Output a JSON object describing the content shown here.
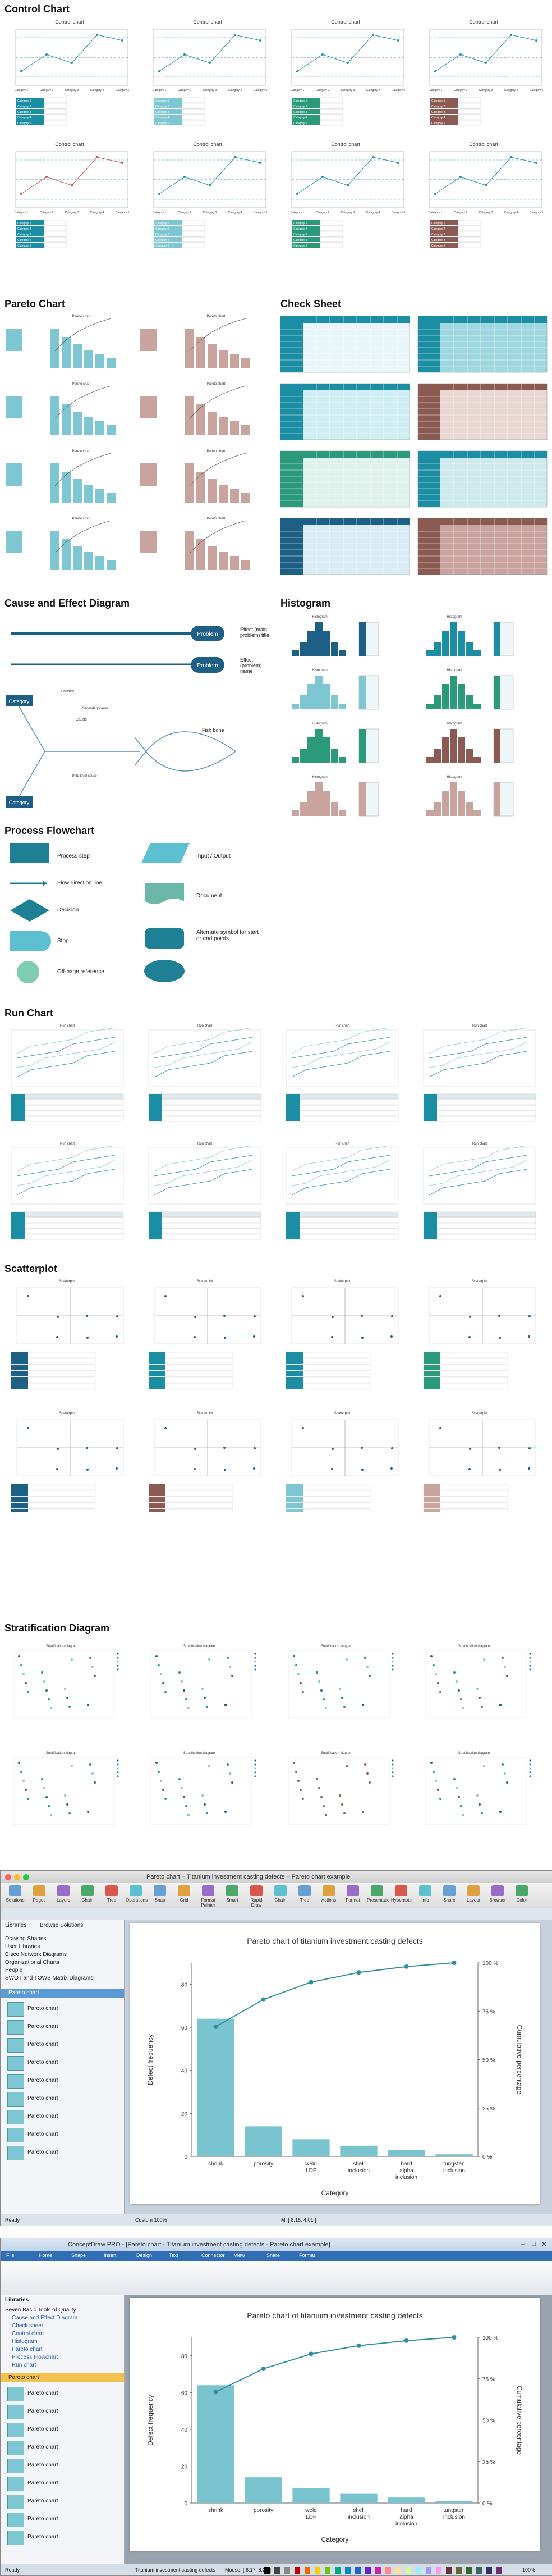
{
  "sections": {
    "control_chart": "Control Chart",
    "pareto_chart": "Pareto Chart",
    "check_sheet": "Check Sheet",
    "cause_effect": "Cause and Effect Diagram",
    "histogram": "Histogram",
    "process_flowchart": "Process Flowchart",
    "run_chart": "Run Chart",
    "scatterplot": "Scatterplot",
    "stratification": "Stratification Diagram"
  },
  "mini": {
    "control_chart_title": "Control chart",
    "pareto_title": "Pareto chart",
    "histogram_title": "Histogram",
    "run_title": "Run chart",
    "scatter_title": "Scatterplot",
    "strat_title": "Stratification diagram",
    "categories": [
      "Category 1",
      "Category 2",
      "Category 3",
      "Category 4",
      "Category 5"
    ]
  },
  "cause_effect": {
    "problem_label": "Problem",
    "problem_desc_1": "Effect (main problem) title",
    "problem_desc_2": "Effect (problem) name",
    "category": "Category",
    "causes": "Causes",
    "cause": "Cause",
    "secondary": "Secondary cause",
    "third": "Third level cause",
    "fish_label": "Fish bone"
  },
  "flowchart": {
    "process_step": "Process step",
    "flow_direction": "Flow direction line",
    "decision": "Decision",
    "stop": "Stop",
    "off_page": "Off-page reference",
    "input_output": "Input / Output",
    "document": "Document",
    "alternate": "Alternate symbol for start or end points"
  },
  "app1": {
    "window_title": "Pareto chart – Titanium investment casting defects – Pareto chart example",
    "toolbar": [
      "Solutions",
      "Pages",
      "Layers",
      "Chain",
      "Tree",
      "Operations",
      "Snap",
      "Grid",
      "Format Painter",
      "Smart",
      "Rapid Draw",
      "Chain",
      "Tree",
      "Actions",
      "Format",
      "Presentation",
      "Hypernote",
      "Info",
      "Share",
      "Layout",
      "Browser",
      "Color"
    ],
    "sidebar": {
      "items": [
        "Libraries",
        "Browse Solutions",
        "Drawing Shapes",
        "User Libraries",
        "Cisco Network Diagrams",
        "Organizational Charts",
        "People",
        "SWOT and TOWS Matrix Diagrams"
      ],
      "library_header": "Pareto chart",
      "thumbs": [
        "Pareto chart",
        "Pareto chart",
        "Pareto chart",
        "Pareto chart",
        "Pareto chart",
        "Pareto chart",
        "Pareto chart",
        "Pareto chart",
        "Pareto chart"
      ]
    },
    "status": {
      "left": "Ready",
      "zoom": "Custom 100%",
      "coords": "M: [ 8.16, 4.01 ]"
    }
  },
  "app2": {
    "window_title": "ConceptDraw PRO - [Pareto chart - Titanium investment casting defects - Pareto chart example]",
    "tabs": [
      "File",
      "Home",
      "Shape",
      "Insert",
      "Design",
      "Text",
      "Connector",
      "View",
      "Share",
      "Format"
    ],
    "sidebar": {
      "header": "Libraries",
      "tree": [
        "Seven Basic Tools of Quality",
        "Cause and Effect Diagram",
        "Check sheet",
        "Control chart",
        "Histogram",
        "Pareto chart",
        "Process Flowchart",
        "Run chart"
      ],
      "library_header": "Pareto chart",
      "thumbs": [
        "Pareto chart",
        "Pareto chart",
        "Pareto chart",
        "Pareto chart",
        "Pareto chart",
        "Pareto chart",
        "Pareto chart",
        "Pareto chart",
        "Pareto chart"
      ]
    },
    "status": {
      "left": "Ready",
      "page": "Titanium investment casting defects",
      "mouse": "Mouse: [ 6.17, 8.26 ] in",
      "zoom": "100%"
    }
  },
  "pareto_chart": {
    "title": "Pareto chart of titanium investment casting defects",
    "ylabel_left": "Defect frequency",
    "ylabel_right": "Cumulative percentage",
    "xlabel": "Category",
    "left_ticks": [
      "0",
      "20",
      "40",
      "60",
      "80"
    ],
    "right_ticks": [
      "0 %",
      "25 %",
      "50 %",
      "75 %",
      "100 %"
    ]
  },
  "chart_data": {
    "type": "bar",
    "title": "Pareto chart of titanium investment casting defects",
    "categories": [
      "shrink",
      "porosity",
      "weld LDF",
      "shell inclusion",
      "hard alpha inclusion",
      "tungsten inclusion"
    ],
    "series": [
      {
        "name": "Defect frequency",
        "values": [
          64,
          14,
          8,
          5,
          3,
          1
        ]
      },
      {
        "name": "Cumulative percentage",
        "values": [
          67,
          81,
          90,
          95,
          98,
          100
        ]
      }
    ],
    "xlabel": "Category",
    "ylabel": "Defect frequency",
    "ylim": [
      0,
      90
    ],
    "y2lim": [
      0,
      100
    ]
  },
  "colors": {
    "teal": "#1b8ea3",
    "teal_light": "#7fc6d3",
    "green": "#2a9a7a",
    "brown": "#8b5a52",
    "pink": "#c9a39e",
    "navy": "#1e5f86"
  }
}
